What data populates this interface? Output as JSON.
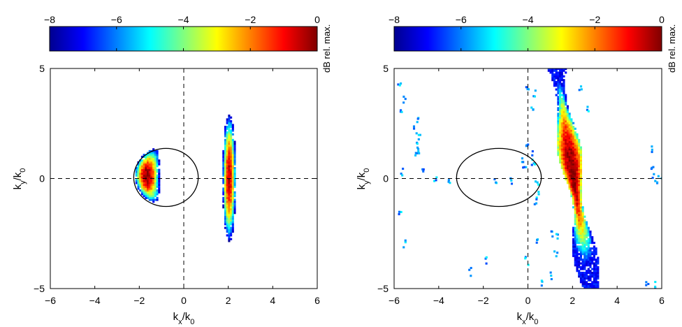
{
  "chart_data": [
    {
      "type": "heatmap",
      "colormap": "jet",
      "colorbar": {
        "label": "dB rel. max.",
        "range": [
          -8,
          0
        ],
        "ticks": [
          {
            "value": -8,
            "label": "−8"
          },
          {
            "value": -6,
            "label": "−6"
          },
          {
            "value": -4,
            "label": "−4"
          },
          {
            "value": -2,
            "label": "−2"
          },
          {
            "value": 0,
            "label": "0"
          }
        ]
      },
      "xlim": [
        -6,
        6
      ],
      "ylim": [
        -5,
        5
      ],
      "xticks": [
        {
          "value": -6,
          "label": "−6"
        },
        {
          "value": -4,
          "label": "−4"
        },
        {
          "value": -2,
          "label": "−2"
        },
        {
          "value": 0,
          "label": "0"
        },
        {
          "value": 2,
          "label": "2"
        },
        {
          "value": 4,
          "label": "4"
        },
        {
          "value": 6,
          "label": "6"
        }
      ],
      "yticks": [
        {
          "value": 5,
          "label": "5"
        },
        {
          "value": 0,
          "label": "0"
        },
        {
          "value": -5,
          "label": "−5"
        }
      ],
      "xlabel": {
        "main": "k",
        "sub1": "x",
        "mid": "/k",
        "sub2": "0"
      },
      "ylabel": {
        "main": "k",
        "sub1": "y",
        "mid": "/k",
        "sub2": "0"
      },
      "reference_lines": {
        "x": 0,
        "y": 0,
        "style": "dashed"
      },
      "ellipse": {
        "cx": -0.8,
        "cy": 0.05,
        "rx": 1.45,
        "ry": 1.32
      },
      "blobs": [
        {
          "type": "crescent",
          "cx": -1.4,
          "cy": 0.1,
          "rx": 0.55,
          "ry": 1.2,
          "peak_db": 0
        },
        {
          "type": "streak",
          "cx": 2.0,
          "cy": 0.0,
          "rx": 0.3,
          "ry": 2.9,
          "peak_db": -0.5
        }
      ]
    },
    {
      "type": "heatmap",
      "colormap": "jet",
      "colorbar": {
        "label": "dB rel. max.",
        "range": [
          -8,
          0
        ],
        "ticks": [
          {
            "value": -8,
            "label": "−8"
          },
          {
            "value": -6,
            "label": "−6"
          },
          {
            "value": -4,
            "label": "−4"
          },
          {
            "value": -2,
            "label": "−2"
          },
          {
            "value": 0,
            "label": "0"
          }
        ]
      },
      "xlim": [
        -6,
        6
      ],
      "ylim": [
        -5,
        5
      ],
      "xticks": [
        {
          "value": -6,
          "label": "−6"
        },
        {
          "value": -4,
          "label": "−4"
        },
        {
          "value": -2,
          "label": "−2"
        },
        {
          "value": 0,
          "label": "0"
        },
        {
          "value": 2,
          "label": "2"
        },
        {
          "value": 4,
          "label": "4"
        },
        {
          "value": 6,
          "label": "6"
        }
      ],
      "yticks": [
        {
          "value": 5,
          "label": "5"
        },
        {
          "value": 0,
          "label": "0"
        },
        {
          "value": -5,
          "label": "−5"
        }
      ],
      "xlabel": {
        "main": "k",
        "sub1": "x",
        "mid": "/k",
        "sub2": "0"
      },
      "ylabel": {
        "main": "k",
        "sub1": "y",
        "mid": "/k",
        "sub2": "0"
      },
      "reference_lines": {
        "x": 0,
        "y": 0,
        "style": "dashed"
      },
      "ellipse": {
        "cx": -1.3,
        "cy": 0.05,
        "rx": 1.9,
        "ry": 1.32
      },
      "blobs": [
        {
          "type": "diagonal_band",
          "x_at_top": 1.25,
          "x_at_bottom": 2.75,
          "width": 0.85,
          "peak_x": 1.9,
          "peak_y": 0.3,
          "peak_db": 0
        },
        {
          "type": "specks",
          "points": [
            [
              -5.0,
              2.6
            ],
            [
              -5.1,
              2.2
            ],
            [
              -4.9,
              1.8
            ],
            [
              -5.0,
              1.4
            ],
            [
              -5.05,
              1.0
            ],
            [
              -4.95,
              1.2
            ],
            [
              -5.8,
              4.2
            ],
            [
              -5.6,
              3.5
            ],
            [
              -5.7,
              3.0
            ],
            [
              -4.7,
              0.2
            ],
            [
              -3.6,
              -0.2
            ],
            [
              -4.2,
              0.0
            ],
            [
              -0.3,
              0.7
            ],
            [
              -0.2,
              0.3
            ],
            [
              0.1,
              1.0
            ],
            [
              0.2,
              0.6
            ],
            [
              0.35,
              -0.3
            ],
            [
              0.3,
              -1.1
            ],
            [
              -0.1,
              1.5
            ],
            [
              0.15,
              3.2
            ],
            [
              0.25,
              3.8
            ],
            [
              -0.05,
              4.1
            ],
            [
              -0.8,
              -0.1
            ],
            [
              -1.5,
              -0.1
            ],
            [
              0.4,
              -0.8
            ],
            [
              1.0,
              -2.5
            ],
            [
              0.4,
              -3.0
            ],
            [
              -0.1,
              -3.8
            ],
            [
              -1.9,
              -3.7
            ],
            [
              -2.6,
              -4.3
            ],
            [
              1.0,
              -4.5
            ],
            [
              0.6,
              -4.8
            ],
            [
              1.2,
              -3.5
            ],
            [
              1.25,
              -2.7
            ],
            [
              2.3,
              4.1
            ],
            [
              2.6,
              3.2
            ],
            [
              5.5,
              1.3
            ],
            [
              5.55,
              0.5
            ],
            [
              5.6,
              0.0
            ],
            [
              6.0,
              0.0
            ],
            [
              5.8,
              -0.1
            ],
            [
              5.3,
              -4.9
            ],
            [
              5.6,
              -4.9
            ],
            [
              -5.6,
              -3.0
            ],
            [
              -5.8,
              -1.5
            ],
            [
              -5.7,
              0.3
            ]
          ],
          "db": -6.5
        }
      ]
    }
  ]
}
